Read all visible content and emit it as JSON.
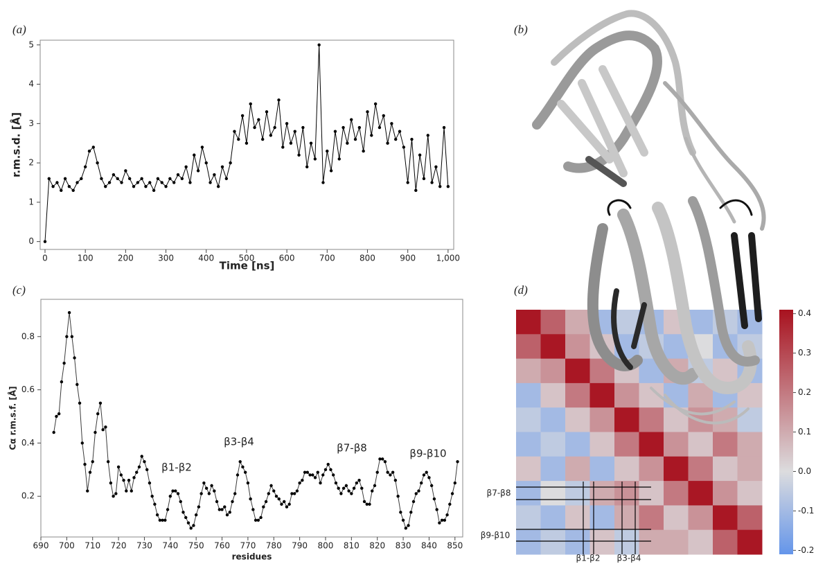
{
  "panel_labels": [
    "(a)",
    "(b)",
    "(c)",
    "(d)"
  ],
  "chart_data": [
    {
      "type": "line",
      "ylabel": "r.m.s.d. [Å]",
      "xlabel": "Time [ns]",
      "color": "#000000",
      "x": [
        0,
        10,
        20,
        30,
        40,
        50,
        60,
        70,
        80,
        90,
        100,
        110,
        120,
        130,
        140,
        150,
        160,
        170,
        180,
        190,
        200,
        210,
        220,
        230,
        240,
        250,
        260,
        270,
        280,
        290,
        300,
        310,
        320,
        330,
        340,
        350,
        360,
        370,
        380,
        390,
        400,
        410,
        420,
        430,
        440,
        450,
        460,
        470,
        480,
        490,
        500,
        510,
        520,
        530,
        540,
        550,
        560,
        570,
        580,
        590,
        600,
        610,
        620,
        630,
        640,
        650,
        660,
        670,
        680,
        690,
        700,
        710,
        720,
        730,
        740,
        750,
        760,
        770,
        780,
        790,
        800,
        810,
        820,
        830,
        840,
        850,
        860,
        870,
        880,
        890,
        900,
        910,
        920,
        930,
        940,
        950,
        960,
        970,
        980,
        990,
        1000
      ],
      "values": [
        0,
        1.6,
        1.4,
        1.5,
        1.3,
        1.6,
        1.4,
        1.3,
        1.5,
        1.6,
        1.9,
        2.3,
        2.4,
        2.0,
        1.6,
        1.4,
        1.5,
        1.7,
        1.6,
        1.5,
        1.8,
        1.6,
        1.4,
        1.5,
        1.6,
        1.4,
        1.5,
        1.3,
        1.6,
        1.5,
        1.4,
        1.6,
        1.5,
        1.7,
        1.6,
        1.9,
        1.5,
        2.2,
        1.8,
        2.4,
        2.0,
        1.5,
        1.7,
        1.4,
        1.9,
        1.6,
        2.0,
        2.8,
        2.6,
        3.2,
        2.5,
        3.5,
        2.9,
        3.1,
        2.6,
        3.3,
        2.7,
        2.9,
        3.6,
        2.4,
        3.0,
        2.5,
        2.8,
        2.2,
        2.9,
        1.9,
        2.5,
        2.1,
        5.0,
        1.5,
        2.3,
        1.8,
        2.8,
        2.1,
        2.9,
        2.5,
        3.1,
        2.6,
        2.9,
        2.3,
        3.3,
        2.7,
        3.5,
        2.9,
        3.2,
        2.5,
        3.0,
        2.6,
        2.8,
        2.4,
        1.5,
        2.6,
        1.3,
        2.2,
        1.6,
        2.7,
        1.5,
        1.9,
        1.4,
        2.9,
        1.4
      ],
      "xlim": [
        -12,
        1014
      ],
      "ylim": [
        -0.2,
        5.12
      ],
      "xticks": [
        0,
        100,
        200,
        300,
        400,
        500,
        600,
        700,
        800,
        900,
        {
          "value": 1000,
          "label": "1,000"
        }
      ],
      "yticks": [
        0,
        1,
        2,
        3,
        4,
        5
      ]
    },
    {
      "type": "line",
      "ylabel": "Cα r.m.s.f. [Å]",
      "xlabel": "residues",
      "color": "#3a3a3a",
      "x": [
        695,
        696,
        697,
        698,
        699,
        700,
        701,
        702,
        703,
        704,
        705,
        706,
        707,
        708,
        709,
        710,
        711,
        712,
        713,
        714,
        715,
        716,
        717,
        718,
        719,
        720,
        721,
        722,
        723,
        724,
        725,
        726,
        727,
        728,
        729,
        730,
        731,
        732,
        733,
        734,
        735,
        736,
        737,
        738,
        739,
        740,
        741,
        742,
        743,
        744,
        745,
        746,
        747,
        748,
        749,
        750,
        751,
        752,
        753,
        754,
        755,
        756,
        757,
        758,
        759,
        760,
        761,
        762,
        763,
        764,
        765,
        766,
        767,
        768,
        769,
        770,
        771,
        772,
        773,
        774,
        775,
        776,
        777,
        778,
        779,
        780,
        781,
        782,
        783,
        784,
        785,
        786,
        787,
        788,
        789,
        790,
        791,
        792,
        793,
        794,
        795,
        796,
        797,
        798,
        799,
        800,
        801,
        802,
        803,
        804,
        805,
        806,
        807,
        808,
        809,
        810,
        811,
        812,
        813,
        814,
        815,
        816,
        817,
        818,
        819,
        820,
        821,
        822,
        823,
        824,
        825,
        826,
        827,
        828,
        829,
        830,
        831,
        832,
        833,
        834,
        835,
        836,
        837,
        838,
        839,
        840,
        841,
        842,
        843,
        844,
        845,
        846,
        847,
        848,
        849,
        850,
        851
      ],
      "values": [
        0.44,
        0.5,
        0.51,
        0.63,
        0.7,
        0.8,
        0.89,
        0.8,
        0.72,
        0.62,
        0.55,
        0.4,
        0.32,
        0.22,
        0.29,
        0.33,
        0.44,
        0.51,
        0.55,
        0.45,
        0.46,
        0.33,
        0.25,
        0.2,
        0.21,
        0.31,
        0.28,
        0.26,
        0.22,
        0.26,
        0.22,
        0.27,
        0.29,
        0.31,
        0.35,
        0.33,
        0.3,
        0.25,
        0.2,
        0.17,
        0.13,
        0.11,
        0.11,
        0.11,
        0.15,
        0.2,
        0.22,
        0.22,
        0.21,
        0.18,
        0.14,
        0.12,
        0.1,
        0.08,
        0.09,
        0.13,
        0.16,
        0.21,
        0.25,
        0.23,
        0.21,
        0.24,
        0.22,
        0.18,
        0.15,
        0.15,
        0.16,
        0.13,
        0.14,
        0.18,
        0.21,
        0.28,
        0.33,
        0.31,
        0.29,
        0.25,
        0.19,
        0.15,
        0.11,
        0.11,
        0.12,
        0.16,
        0.18,
        0.21,
        0.24,
        0.22,
        0.2,
        0.19,
        0.17,
        0.18,
        0.16,
        0.17,
        0.21,
        0.21,
        0.22,
        0.25,
        0.26,
        0.29,
        0.29,
        0.28,
        0.28,
        0.27,
        0.29,
        0.25,
        0.28,
        0.3,
        0.32,
        0.3,
        0.28,
        0.25,
        0.23,
        0.21,
        0.23,
        0.24,
        0.22,
        0.21,
        0.23,
        0.25,
        0.26,
        0.23,
        0.18,
        0.17,
        0.17,
        0.22,
        0.24,
        0.29,
        0.34,
        0.34,
        0.33,
        0.29,
        0.28,
        0.29,
        0.26,
        0.2,
        0.14,
        0.11,
        0.08,
        0.09,
        0.14,
        0.18,
        0.21,
        0.22,
        0.25,
        0.28,
        0.29,
        0.27,
        0.24,
        0.19,
        0.15,
        0.1,
        0.11,
        0.11,
        0.13,
        0.17,
        0.21,
        0.25,
        0.33
      ],
      "xlim": [
        690,
        853
      ],
      "ylim": [
        0.047,
        0.94
      ],
      "xticks": [
        690,
        700,
        710,
        720,
        730,
        740,
        750,
        760,
        770,
        780,
        790,
        800,
        810,
        820,
        830,
        840,
        850
      ],
      "yticks": [
        0.2,
        0.4,
        0.6,
        0.8
      ],
      "annotations": [
        "β1-β2",
        "β3-β4",
        "β7-β8",
        "β9-β10"
      ]
    },
    {
      "type": "heatmap",
      "values": [
        [
          0.4,
          0.25,
          0.1,
          -0.1,
          -0.05,
          -0.1,
          0.05,
          -0.1,
          -0.05,
          -0.1
        ],
        [
          0.25,
          0.4,
          0.15,
          0.05,
          -0.1,
          -0.05,
          -0.1,
          0.0,
          -0.1,
          -0.05
        ],
        [
          0.1,
          0.15,
          0.4,
          0.2,
          0.05,
          -0.1,
          0.1,
          -0.05,
          0.05,
          -0.1
        ],
        [
          -0.1,
          0.05,
          0.2,
          0.4,
          0.15,
          0.05,
          -0.1,
          0.1,
          -0.1,
          0.05
        ],
        [
          -0.05,
          -0.1,
          0.05,
          0.15,
          0.4,
          0.2,
          0.05,
          0.15,
          0.1,
          -0.05
        ],
        [
          -0.1,
          -0.05,
          -0.1,
          0.05,
          0.2,
          0.4,
          0.15,
          0.05,
          0.2,
          0.1
        ],
        [
          0.05,
          -0.1,
          0.1,
          -0.1,
          0.05,
          0.15,
          0.4,
          0.2,
          0.05,
          0.1
        ],
        [
          -0.1,
          0.0,
          -0.05,
          0.1,
          0.15,
          0.05,
          0.2,
          0.4,
          0.15,
          0.05
        ],
        [
          -0.05,
          -0.1,
          0.05,
          -0.1,
          0.1,
          0.2,
          0.05,
          0.15,
          0.4,
          0.25
        ],
        [
          -0.1,
          -0.05,
          -0.1,
          0.05,
          -0.05,
          0.1,
          0.1,
          0.05,
          0.25,
          0.4
        ]
      ],
      "zlim": [
        -0.21,
        0.41
      ],
      "zticks": [
        -0.2,
        -0.1,
        {
          "value": 0,
          "label": "0.0"
        },
        0.1,
        0.2,
        0.3,
        0.4
      ],
      "colormap": [
        "#6495ea",
        "#dcdcde",
        "#a8121f"
      ],
      "annotations": [
        "β7-β8",
        "β9-β10",
        "β1-β2",
        "β3-β4"
      ]
    }
  ]
}
